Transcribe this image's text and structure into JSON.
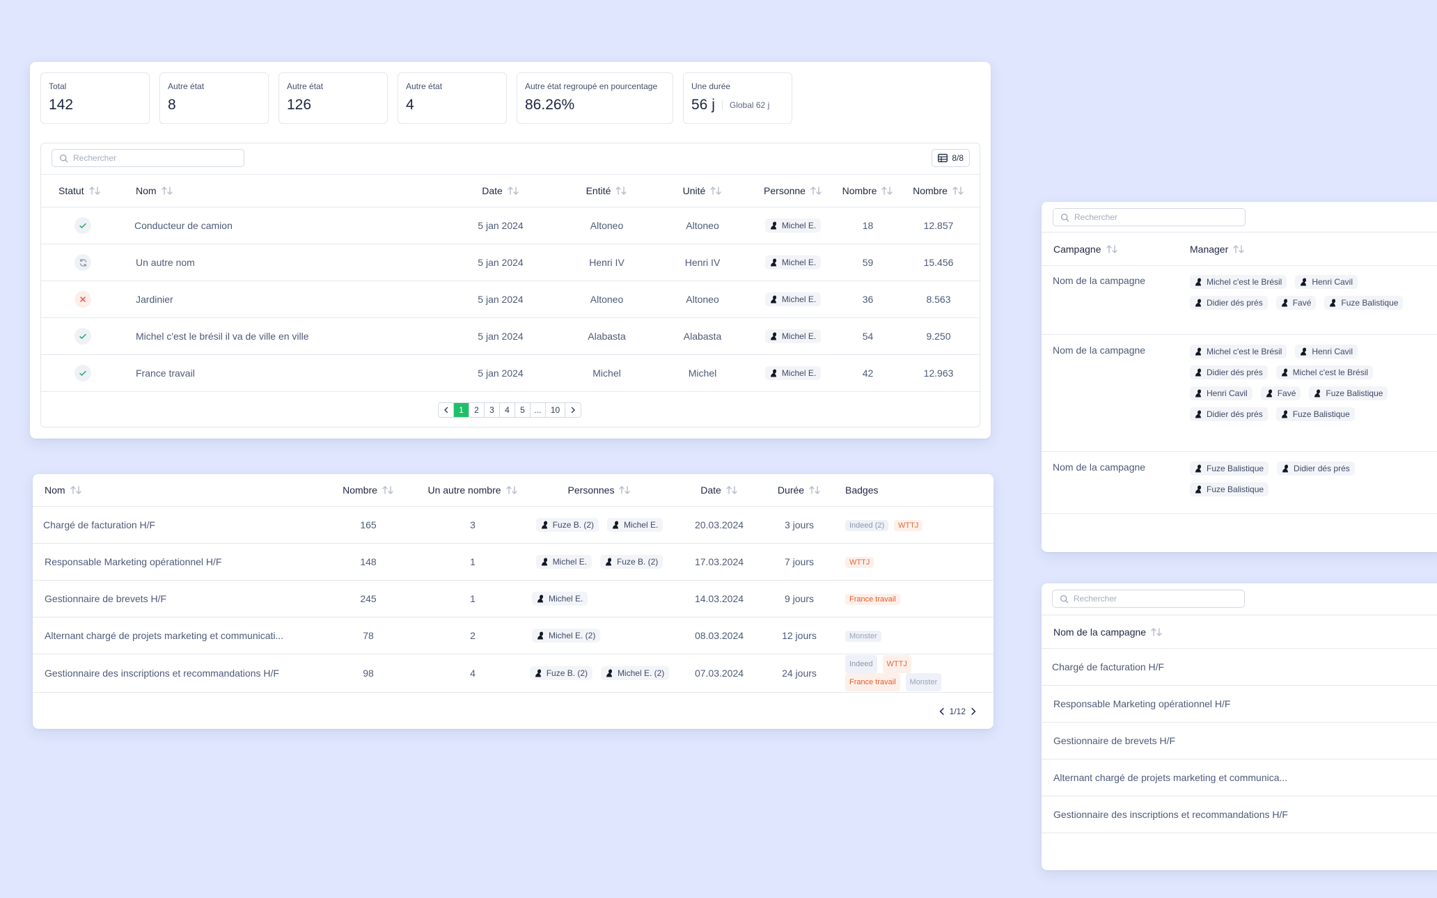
{
  "kpis": [
    {
      "label": "Total",
      "value": "142"
    },
    {
      "label": "Autre état",
      "value": "8"
    },
    {
      "label": "Autre état",
      "value": "126"
    },
    {
      "label": "Autre état",
      "value": "4"
    },
    {
      "label": "Autre état regroupé en pourcentage",
      "value": "86.26%"
    },
    {
      "label": "Une durée",
      "value": "56 j",
      "sub": "Global 62 j"
    }
  ],
  "main_table": {
    "search_placeholder": "Rechercher",
    "columns_button": "8/8",
    "headers": [
      "Statut",
      "Nom",
      "Date",
      "Entité",
      "Unité",
      "Personne",
      "Nombre",
      "Nombre"
    ],
    "rows": [
      {
        "status": "check",
        "nom": "Conducteur de camion",
        "date": "5 jan 2024",
        "entite": "Altoneo",
        "unite": "Altoneo",
        "personne": "Michel E.",
        "n1": "18",
        "n2": "12.857"
      },
      {
        "status": "sync",
        "nom": "Un autre nom",
        "date": "5 jan 2024",
        "entite": "Henri IV",
        "unite": "Henri IV",
        "personne": "Michel E.",
        "n1": "59",
        "n2": "15.456"
      },
      {
        "status": "cross",
        "nom": "Jardinier",
        "date": "5 jan 2024",
        "entite": "Altoneo",
        "unite": "Altoneo",
        "personne": "Michel E.",
        "n1": "36",
        "n2": "8.563"
      },
      {
        "status": "check",
        "nom": "Michel c'est le brésil il va de ville en ville",
        "date": "5 jan 2024",
        "entite": "Alabasta",
        "unite": "Alabasta",
        "personne": "Michel E.",
        "n1": "54",
        "n2": "9.250"
      },
      {
        "status": "check",
        "nom": "France travail",
        "date": "5 jan 2024",
        "entite": "Michel",
        "unite": "Michel",
        "personne": "Michel E.",
        "n1": "42",
        "n2": "12.963"
      }
    ],
    "pagination": [
      "1",
      "2",
      "3",
      "4",
      "5",
      "...",
      "10"
    ]
  },
  "jobs_table": {
    "headers": [
      "Nom",
      "Nombre",
      "Un autre nombre",
      "Personnes",
      "Date",
      "Durée",
      "Badges"
    ],
    "rows": [
      {
        "nom": "Chargé de facturation H/F",
        "nombre": "165",
        "autre": "3",
        "personnes": [
          "Fuze B. (2)",
          "Michel E."
        ],
        "date": "20.03.2024",
        "duree": "3 jours",
        "badges": [
          "Indeed (2)",
          "WTTJ"
        ]
      },
      {
        "nom": "Responsable Marketing opérationnel H/F",
        "nombre": "148",
        "autre": "1",
        "personnes": [
          "Michel E.",
          "Fuze B. (2)"
        ],
        "date": "17.03.2024",
        "duree": "7 jours",
        "badges": [
          "WTTJ"
        ]
      },
      {
        "nom": "Gestionnaire de brevets H/F",
        "nombre": "245",
        "autre": "1",
        "personnes": [
          "Michel E."
        ],
        "date": "14.03.2024",
        "duree": "9 jours",
        "badges": [
          "France travail"
        ]
      },
      {
        "nom": "Alternant chargé de projets marketing et communicati...",
        "nombre": "78",
        "autre": "2",
        "personnes": [
          "Michel E. (2)"
        ],
        "date": "08.03.2024",
        "duree": "12 jours",
        "badges": [
          "Monster"
        ]
      },
      {
        "nom": "Gestionnaire des inscriptions et recommandations H/F",
        "nombre": "98",
        "autre": "4",
        "personnes": [
          "Fuze B. (2)",
          "Michel E. (2)"
        ],
        "date": "07.03.2024",
        "duree": "24 jours",
        "badges": [
          "Indeed",
          "WTTJ",
          "France travail",
          "Monster"
        ]
      }
    ],
    "page_indicator": "1/12"
  },
  "campaign_table": {
    "search_placeholder": "Rechercher",
    "headers": [
      "Campagne",
      "Manager"
    ],
    "rows": [
      {
        "campagne": "Nom de la campagne",
        "managers": [
          "Michel c'est le Brésil",
          "Henri Cavil",
          "Didier dés prés",
          "Favé",
          "Fuze Balistique"
        ]
      },
      {
        "campagne": "Nom de la campagne",
        "managers": [
          "Michel c'est le Brésil",
          "Henri Cavil",
          "Didier dés prés",
          "Michel c'est le Brésil",
          "Henri Cavil",
          "Favé",
          "Fuze Balistique",
          "Didier dés prés",
          "Fuze Balistique"
        ]
      },
      {
        "campagne": "Nom de la campagne",
        "managers": [
          "Fuze Balistique",
          "Didier dés prés",
          "Fuze Balistique"
        ]
      }
    ]
  },
  "campaign_list": {
    "search_placeholder": "Rechercher",
    "header": "Nom de la campagne",
    "rows": [
      "Chargé de facturation H/F",
      "Responsable Marketing opérationnel H/F",
      "Gestionnaire de brevets H/F",
      "Alternant chargé de projets marketing et communica...",
      "Gestionnaire des inscriptions et recommandations H/F"
    ]
  },
  "colors": {
    "background": "#dfe6fd",
    "active_page": "#1fbf6a",
    "success": "#1fa866",
    "error": "#e5533d",
    "orange_badge": "#e36a3c"
  }
}
